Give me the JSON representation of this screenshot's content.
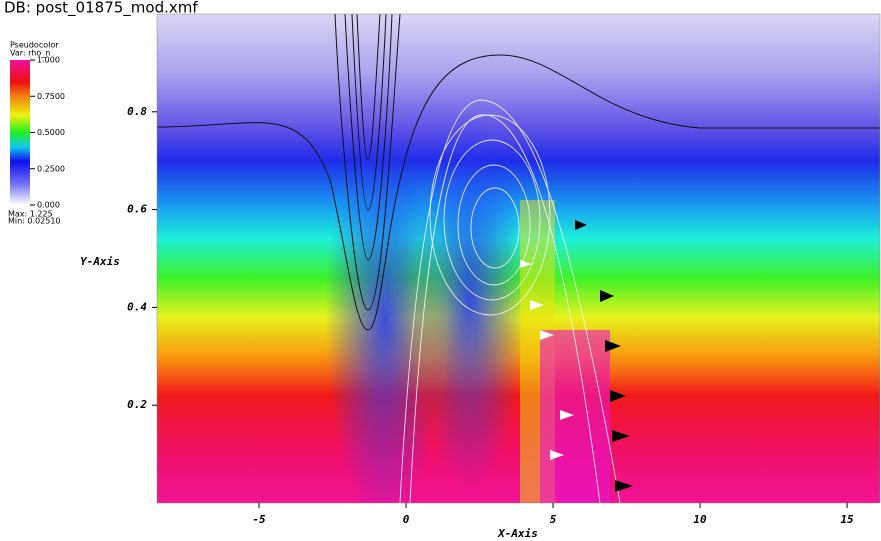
{
  "chart_data": {
    "type": "pseudocolor",
    "title": "DB: post_01875_mod.xmf",
    "legend_title": "Pseudocolor",
    "variable": "Var: rho_n",
    "colorbar_ticks": [
      {
        "value": 1,
        "label": "1.000"
      },
      {
        "value": 0.75,
        "label": "0.7500"
      },
      {
        "value": 0.5,
        "label": "0.5000"
      },
      {
        "value": 0.25,
        "label": "0.2500"
      },
      {
        "value": 0,
        "label": "0.000"
      }
    ],
    "colorbar_lim": [
      0,
      1
    ],
    "max_label": "Max:  1.225",
    "min_label": "Min:  0.02510",
    "x_label": "X-Axis",
    "y_label": "Y-Axis",
    "xlim": [
      -8.47,
      16.12
    ],
    "ylim": [
      0,
      1.0
    ],
    "xticks": [
      -5,
      0,
      5,
      10,
      15
    ],
    "yticks": [
      0.2,
      0.4,
      0.6,
      0.8
    ]
  }
}
